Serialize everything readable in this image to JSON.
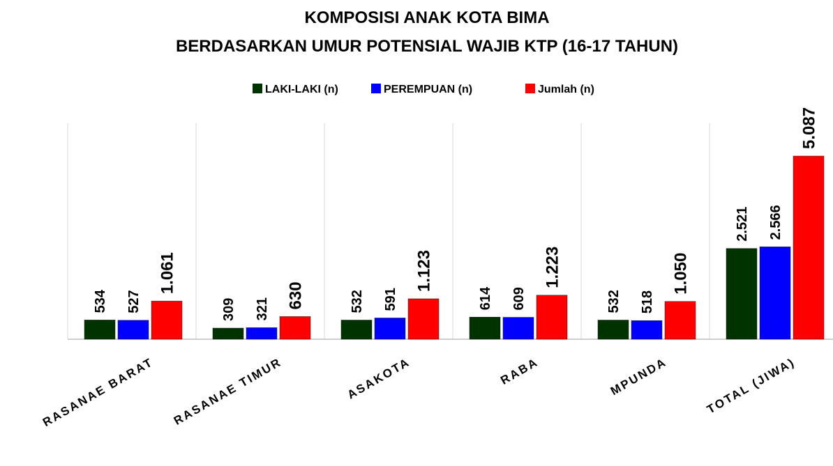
{
  "chart_data": {
    "type": "bar",
    "title": "KOMPOSISI ANAK KOTA BIMA",
    "subtitle": "BERDASARKAN UMUR POTENSIAL WAJIB KTP (16-17 TAHUN)",
    "categories": [
      "RASANAE BARAT",
      "RASANAE TIMUR",
      "ASAKOTA",
      "RABA",
      "MPUNDA",
      "TOTAL (JIWA)"
    ],
    "series": [
      {
        "name": "LAKI-LAKI (n)",
        "color": "#003300",
        "values": [
          534,
          309,
          532,
          614,
          532,
          2521
        ],
        "value_labels": [
          "534",
          "309",
          "532",
          "614",
          "532",
          "2.521"
        ]
      },
      {
        "name": "PEREMPUAN (n)",
        "color": "#0000ff",
        "values": [
          527,
          321,
          591,
          609,
          518,
          2566
        ],
        "value_labels": [
          "527",
          "321",
          "591",
          "609",
          "518",
          "2.566"
        ]
      },
      {
        "name": "Jumlah (n)",
        "color": "#ff0000",
        "values": [
          1061,
          630,
          1123,
          1223,
          1050,
          5087
        ],
        "value_labels": [
          "1.061",
          "630",
          "1.123",
          "1.223",
          "1.050",
          "5.087"
        ]
      }
    ],
    "legend": "top"
  }
}
